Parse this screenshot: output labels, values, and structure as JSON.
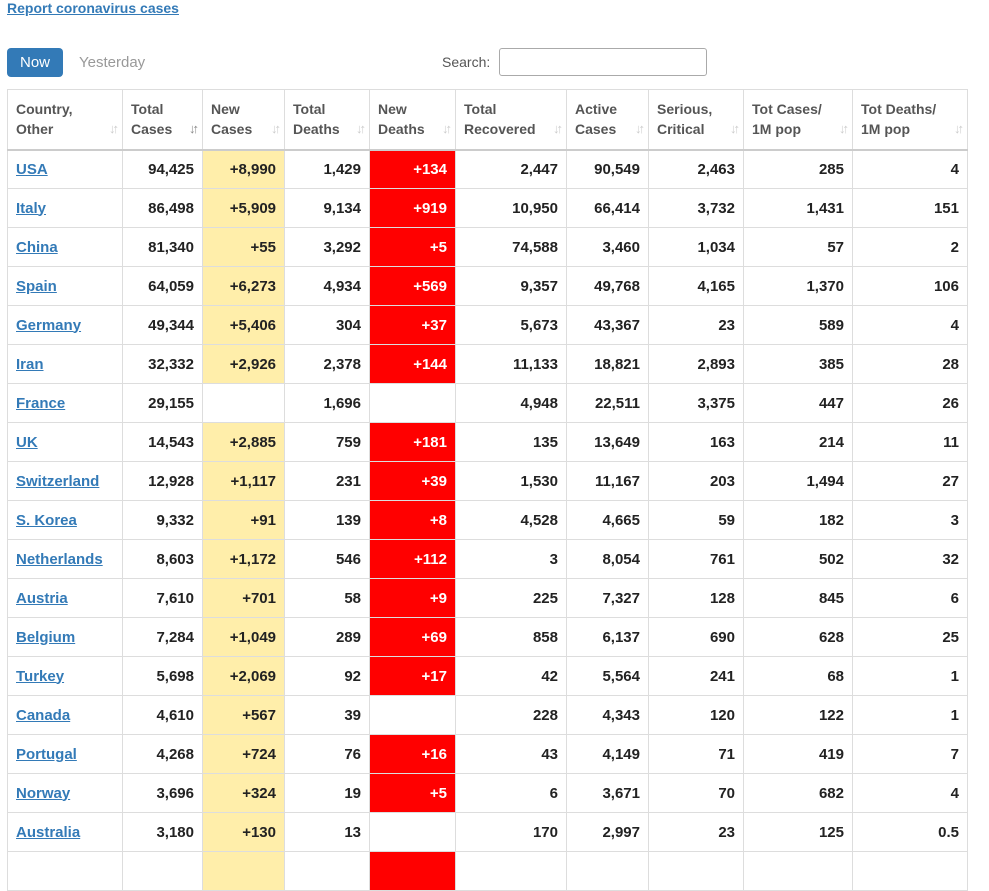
{
  "report_link": "Report coronavirus cases",
  "tabs": {
    "now": "Now",
    "yesterday": "Yesterday"
  },
  "search": {
    "label": "Search:",
    "value": ""
  },
  "colors": {
    "accent": "#337ab7",
    "new_cases_bg": "#ffeeaa",
    "new_deaths_bg": "#ff0000"
  },
  "columns": [
    {
      "line1": "Country,",
      "line2": "Other"
    },
    {
      "line1": "Total",
      "line2": "Cases"
    },
    {
      "line1": "New",
      "line2": "Cases"
    },
    {
      "line1": "Total",
      "line2": "Deaths"
    },
    {
      "line1": "New",
      "line2": "Deaths"
    },
    {
      "line1": "Total",
      "line2": "Recovered"
    },
    {
      "line1": "Active",
      "line2": "Cases"
    },
    {
      "line1": "Serious,",
      "line2": "Critical"
    },
    {
      "line1": "Tot Cases/",
      "line2": "1M pop"
    },
    {
      "line1": "Tot Deaths/",
      "line2": "1M pop"
    }
  ],
  "rows": [
    [
      "USA",
      "94,425",
      "+8,990",
      "1,429",
      "+134",
      "2,447",
      "90,549",
      "2,463",
      "285",
      "4"
    ],
    [
      "Italy",
      "86,498",
      "+5,909",
      "9,134",
      "+919",
      "10,950",
      "66,414",
      "3,732",
      "1,431",
      "151"
    ],
    [
      "China",
      "81,340",
      "+55",
      "3,292",
      "+5",
      "74,588",
      "3,460",
      "1,034",
      "57",
      "2"
    ],
    [
      "Spain",
      "64,059",
      "+6,273",
      "4,934",
      "+569",
      "9,357",
      "49,768",
      "4,165",
      "1,370",
      "106"
    ],
    [
      "Germany",
      "49,344",
      "+5,406",
      "304",
      "+37",
      "5,673",
      "43,367",
      "23",
      "589",
      "4"
    ],
    [
      "Iran",
      "32,332",
      "+2,926",
      "2,378",
      "+144",
      "11,133",
      "18,821",
      "2,893",
      "385",
      "28"
    ],
    [
      "France",
      "29,155",
      "",
      "1,696",
      "",
      "4,948",
      "22,511",
      "3,375",
      "447",
      "26"
    ],
    [
      "UK",
      "14,543",
      "+2,885",
      "759",
      "+181",
      "135",
      "13,649",
      "163",
      "214",
      "11"
    ],
    [
      "Switzerland",
      "12,928",
      "+1,117",
      "231",
      "+39",
      "1,530",
      "11,167",
      "203",
      "1,494",
      "27"
    ],
    [
      "S. Korea",
      "9,332",
      "+91",
      "139",
      "+8",
      "4,528",
      "4,665",
      "59",
      "182",
      "3"
    ],
    [
      "Netherlands",
      "8,603",
      "+1,172",
      "546",
      "+112",
      "3",
      "8,054",
      "761",
      "502",
      "32"
    ],
    [
      "Austria",
      "7,610",
      "+701",
      "58",
      "+9",
      "225",
      "7,327",
      "128",
      "845",
      "6"
    ],
    [
      "Belgium",
      "7,284",
      "+1,049",
      "289",
      "+69",
      "858",
      "6,137",
      "690",
      "628",
      "25"
    ],
    [
      "Turkey",
      "5,698",
      "+2,069",
      "92",
      "+17",
      "42",
      "5,564",
      "241",
      "68",
      "1"
    ],
    [
      "Canada",
      "4,610",
      "+567",
      "39",
      "",
      "228",
      "4,343",
      "120",
      "122",
      "1"
    ],
    [
      "Portugal",
      "4,268",
      "+724",
      "76",
      "+16",
      "43",
      "4,149",
      "71",
      "419",
      "7"
    ],
    [
      "Norway",
      "3,696",
      "+324",
      "19",
      "+5",
      "6",
      "3,671",
      "70",
      "682",
      "4"
    ],
    [
      "Australia",
      "3,180",
      "+130",
      "13",
      "",
      "170",
      "2,997",
      "23",
      "125",
      "0.5"
    ],
    [
      "",
      "",
      "",
      "",
      "",
      "",
      "",
      "",
      "",
      ""
    ]
  ]
}
